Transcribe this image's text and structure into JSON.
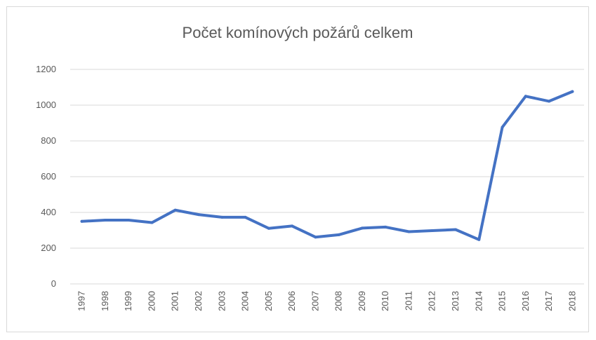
{
  "chart_data": {
    "type": "line",
    "title": "Počet komínových požárů celkem",
    "xlabel": "",
    "ylabel": "",
    "ylim": [
      0,
      1200
    ],
    "yticks": [
      "0",
      "200",
      "400",
      "600",
      "800",
      "1000",
      "1200"
    ],
    "grid": true,
    "legend": "none",
    "categories": [
      "1997",
      "1998",
      "1999",
      "2000",
      "2001",
      "2002",
      "2003",
      "2004",
      "2005",
      "2006",
      "2007",
      "2008",
      "2009",
      "2010",
      "2011",
      "2012",
      "2013",
      "2014",
      "2015",
      "2016",
      "2017",
      "2018"
    ],
    "series": [
      {
        "color": "#4472c4",
        "values": [
          350,
          357,
          357,
          343,
          413,
          388,
          373,
          373,
          311,
          324,
          262,
          275,
          312,
          318,
          292,
          298,
          304,
          248,
          876,
          1050,
          1022,
          1076
        ]
      }
    ]
  },
  "colors": {
    "line": "#4472c4",
    "grid": "#d9d9d9",
    "text": "#595959"
  }
}
